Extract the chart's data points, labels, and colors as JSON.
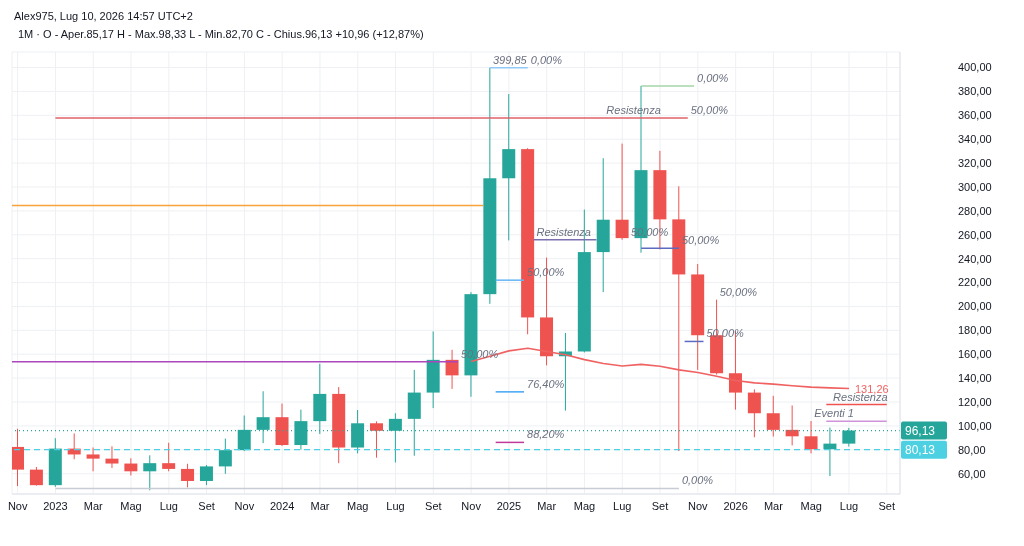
{
  "chart_data": {
    "type": "candlestick",
    "title": "1M · O - Aper.85,17  H - Max.98,33  L - Min.82,70  C - Chius.96,13  +10,96 (+12,87%)",
    "x": [
      "2022-11",
      "2022-12",
      "2023-01",
      "2023-02",
      "2023-03",
      "2023-04",
      "2023-05",
      "2023-06",
      "2023-07",
      "2023-08",
      "2023-09",
      "2023-10",
      "2023-11",
      "2023-12",
      "2024-01",
      "2024-02",
      "2024-03",
      "2024-04",
      "2024-05",
      "2024-06",
      "2024-07",
      "2024-08",
      "2024-09",
      "2024-10",
      "2024-11",
      "2024-12",
      "2025-01",
      "2025-02",
      "2025-03",
      "2025-04",
      "2025-05",
      "2025-06",
      "2025-07",
      "2025-08",
      "2025-09",
      "2025-10",
      "2025-11",
      "2025-12",
      "2026-01",
      "2026-02",
      "2026-03",
      "2026-04",
      "2026-05",
      "2026-06",
      "2026-07"
    ],
    "ohlc": [
      [
        82.4,
        97.6,
        49.6,
        63.4
      ],
      [
        63.4,
        65.6,
        50,
        50.4
      ],
      [
        50.4,
        89.7,
        49,
        81
      ],
      [
        81,
        93.7,
        72.1,
        76.1
      ],
      [
        76.1,
        81.9,
        62,
        72.6
      ],
      [
        72.6,
        82.9,
        64.8,
        68.5
      ],
      [
        68.5,
        72.9,
        58.5,
        62
      ],
      [
        62,
        75.4,
        46.1,
        68.8
      ],
      [
        68.8,
        85.9,
        62,
        64
      ],
      [
        64,
        68.3,
        48.5,
        53.9
      ],
      [
        53.9,
        67.2,
        50.4,
        66.1
      ],
      [
        66.1,
        89.4,
        59.9,
        79.7
      ],
      [
        79.7,
        108.7,
        78.9,
        96.7
      ],
      [
        96.7,
        129,
        85.6,
        107.3
      ],
      [
        107.3,
        118.7,
        83.2,
        84
      ],
      [
        84,
        113.6,
        80.2,
        104
      ],
      [
        104,
        152,
        93.2,
        126.8
      ],
      [
        126.8,
        132.5,
        68.8,
        81.9
      ],
      [
        81.9,
        113.3,
        77,
        102.2
      ],
      [
        102.2,
        103.8,
        73.4,
        95.9
      ],
      [
        95.9,
        110.6,
        69.4,
        105.9
      ],
      [
        105.9,
        146.9,
        75,
        127.9
      ],
      [
        127.9,
        179.1,
        114.9,
        155.3
      ],
      [
        155.3,
        163.7,
        131,
        142.3
      ],
      [
        142.3,
        212,
        124.4,
        210.3
      ],
      [
        210.3,
        399.85,
        202.2,
        307.3
      ],
      [
        307.3,
        377.8,
        255.3,
        331.7
      ],
      [
        331.7,
        332.5,
        176.7,
        190.8
      ],
      [
        190.8,
        240.9,
        150.7,
        158.3
      ],
      [
        158.3,
        177.8,
        112.8,
        162.3
      ],
      [
        162.3,
        281.1,
        161.5,
        245.5
      ],
      [
        245.5,
        324.1,
        212,
        272.6
      ],
      [
        272.6,
        336.3,
        255.8,
        257.2
      ],
      [
        257.2,
        384.6,
        245,
        314.1
      ],
      [
        314.1,
        330.3,
        247.7,
        272.9
      ],
      [
        272.9,
        300.6,
        78.9,
        226.8
      ],
      [
        226.8,
        235.5,
        146.9,
        175.9
      ],
      [
        175.9,
        205.7,
        143,
        144.1
      ],
      [
        144.1,
        179.4,
        113.6,
        127.9
      ],
      [
        127.9,
        130.6,
        90.5,
        110.6
      ],
      [
        110.6,
        125.2,
        91.1,
        96.7
      ],
      [
        96.7,
        117.1,
        83.7,
        91.3
      ],
      [
        91.3,
        104.1,
        77,
        80.5
      ],
      [
        80.5,
        98.6,
        58,
        85.17
      ],
      [
        85.17,
        98.33,
        82.7,
        96.13
      ]
    ],
    "colors": [
      "#ef5350",
      "#ef5350",
      "#26a69a",
      "#ef5350",
      "#ef5350",
      "#ef5350",
      "#ef5350",
      "#26a69a",
      "#ef5350",
      "#ef5350",
      "#26a69a",
      "#26a69a",
      "#26a69a",
      "#26a69a",
      "#ef5350",
      "#26a69a",
      "#26a69a",
      "#ef5350",
      "#26a69a",
      "#ef5350",
      "#26a69a",
      "#26a69a",
      "#26a69a",
      "#ef5350",
      "#26a69a",
      "#26a69a",
      "#26a69a",
      "#ef5350",
      "#ef5350",
      "#26a69a",
      "#26a69a",
      "#26a69a",
      "#ef5350",
      "#26a69a",
      "#ef5350",
      "#ef5350",
      "#ef5350",
      "#ef5350",
      "#ef5350",
      "#ef5350",
      "#ef5350",
      "#ef5350",
      "#ef5350",
      "#26a69a",
      "#26a69a"
    ],
    "series": [
      {
        "type": "line",
        "color": "#f06262",
        "x": [
          "2024-11",
          "2024-12",
          "2025-01",
          "2025-02",
          "2025-03",
          "2025-04",
          "2025-05",
          "2025-06",
          "2025-07",
          "2025-08",
          "2025-09",
          "2025-10",
          "2025-11",
          "2025-12",
          "2026-01",
          "2026-02",
          "2026-03",
          "2026-04",
          "2026-05",
          "2026-06",
          "2026-07"
        ],
        "values": [
          154,
          158.3,
          162.8,
          165,
          162.3,
          159.6,
          155.5,
          152.3,
          150.2,
          151.5,
          150,
          146.9,
          144.7,
          141.5,
          138,
          136,
          135,
          133.6,
          132.5,
          131.8,
          131.26
        ],
        "value_labels": [
          null,
          null,
          null,
          null,
          null,
          null,
          null,
          null,
          null,
          null,
          null,
          null,
          null,
          null,
          null,
          null,
          null,
          null,
          null,
          null,
          "131,26"
        ]
      },
      {
        "type": "line",
        "color": "#e0606a",
        "x": [
          "2023-01",
          "2025-10-15"
        ],
        "values": [
          357.7,
          357.7
        ]
      },
      {
        "type": "line",
        "color": "#f7a23b",
        "x": [
          "2022-10-22",
          "2024-11-20"
        ],
        "values": [
          284.6,
          284.6
        ]
      },
      {
        "type": "line",
        "color": "#ab47bc",
        "x": [
          "2022-10-22",
          "2024-10-10"
        ],
        "values": [
          153.7,
          153.7
        ]
      },
      {
        "type": "line",
        "color": "#7b6fb0",
        "x": [
          "2025-02-10",
          "2025-05-20"
        ],
        "values": [
          255.8,
          255.8
        ]
      },
      {
        "type": "line",
        "color": "#ef5350",
        "x": [
          "2026-05-25",
          "2026-09-01"
        ],
        "values": [
          117.9,
          117.9
        ]
      },
      {
        "type": "line",
        "color": "#ce93d8",
        "x": [
          "2026-05-25",
          "2026-09-01"
        ],
        "values": [
          104,
          104
        ]
      },
      {
        "type": "line",
        "color": "#90caf9",
        "x": [
          "2024-12",
          "2025-02"
        ],
        "values": [
          399.85,
          399.85
        ]
      },
      {
        "type": "line",
        "color": "#a5d6a7",
        "x": [
          "2025-08",
          "2025-10-25"
        ],
        "values": [
          384.6,
          384.6
        ]
      },
      {
        "type": "line",
        "color": "#5c6bc0",
        "x": [
          "2025-08",
          "2025-10"
        ],
        "values": [
          248.8,
          248.8
        ]
      },
      {
        "type": "line",
        "color": "#64b5f6",
        "x": [
          "2024-12-10",
          "2025-01-25"
        ],
        "values": [
          222,
          222
        ]
      },
      {
        "type": "line",
        "color": "#5c6bc0",
        "x": [
          "2025-10-10",
          "2025-11-10"
        ],
        "values": [
          170.7,
          170.7
        ]
      },
      {
        "type": "line",
        "color": "#42a5f5",
        "x": [
          "2024-12-10",
          "2025-01-25"
        ],
        "values": [
          128.5,
          128.5
        ]
      },
      {
        "type": "line",
        "color": "#c2399a",
        "x": [
          "2024-12-10",
          "2025-01-25"
        ],
        "values": [
          86.2,
          86.2
        ]
      },
      {
        "type": "line",
        "color": "#c8ccd4",
        "x": [
          "2023-01",
          "2025-10"
        ],
        "values": [
          47.7,
          47.7
        ]
      }
    ],
    "ref_lines": [
      {
        "axis": "y",
        "value": 96.13,
        "label": "96,13",
        "color": "#26a69a",
        "line_style": "dotted"
      },
      {
        "axis": "y",
        "value": 80.13,
        "label": "80,13",
        "color": "#4dd0e1",
        "line_style": "dashed"
      }
    ],
    "annotations": [
      "Alex975, Lug 10, 2026 14:57 UTC+2",
      {
        "text": "399,85",
        "x": "2024-12",
        "y": 399.85
      },
      {
        "text": "0,00%",
        "x": "2025-02",
        "y": 399.85
      },
      {
        "text": "0,00%",
        "x": "2025-10-25",
        "y": 384.6
      },
      {
        "text": "Resistenza",
        "x": "2025-06",
        "y": 357.7
      },
      {
        "text": "50,00%",
        "x": "2025-10-15",
        "y": 357.7
      },
      {
        "text": "Resistenza",
        "x": "2025-02-10",
        "y": 255.8
      },
      {
        "text": "50,00%",
        "x": "2025-07-10",
        "y": 255.8
      },
      {
        "text": "50,00%",
        "x": "2025-10",
        "y": 248.8
      },
      {
        "text": "50,00%",
        "x": "2025-01-25",
        "y": 222
      },
      {
        "text": "50,00%",
        "x": "2025-12",
        "y": 205
      },
      {
        "text": "50,00%",
        "x": "2025-11-10",
        "y": 170.7
      },
      {
        "text": "50,00%",
        "x": "2024-10-10",
        "y": 153.7
      },
      {
        "text": "76,40%",
        "x": "2025-01-25",
        "y": 128.5
      },
      {
        "text": "88,20%",
        "x": "2025-01-25",
        "y": 86.2
      },
      {
        "text": "0,00%",
        "x": "2025-10",
        "y": 47.7
      },
      {
        "text": "Resistenza",
        "x": "2026-06",
        "y": 117.9
      },
      {
        "text": "Eventi 1",
        "x": "2026-05",
        "y": 104.1
      }
    ],
    "xlim": [
      "2022-10-22",
      "2026-09-22"
    ],
    "xticks": [
      {
        "value": "2022-11",
        "label": "Nov"
      },
      {
        "value": "2023-01",
        "label": "2023"
      },
      {
        "value": "2023-03",
        "label": "Mar"
      },
      {
        "value": "2023-05",
        "label": "Mag"
      },
      {
        "value": "2023-07",
        "label": "Lug"
      },
      {
        "value": "2023-09",
        "label": "Set"
      },
      {
        "value": "2023-11",
        "label": "Nov"
      },
      {
        "value": "2024-01",
        "label": "2024"
      },
      {
        "value": "2024-03",
        "label": "Mar"
      },
      {
        "value": "2024-05",
        "label": "Mag"
      },
      {
        "value": "2024-07",
        "label": "Lug"
      },
      {
        "value": "2024-09",
        "label": "Set"
      },
      {
        "value": "2024-11",
        "label": "Nov"
      },
      {
        "value": "2025-01",
        "label": "2025"
      },
      {
        "value": "2025-03",
        "label": "Mar"
      },
      {
        "value": "2025-05",
        "label": "Mag"
      },
      {
        "value": "2025-07",
        "label": "Lug"
      },
      {
        "value": "2025-09",
        "label": "Set"
      },
      {
        "value": "2025-11",
        "label": "Nov"
      },
      {
        "value": "2026-01",
        "label": "2026"
      },
      {
        "value": "2026-03",
        "label": "Mar"
      },
      {
        "value": "2026-05",
        "label": "Mag"
      },
      {
        "value": "2026-07",
        "label": "Lug"
      },
      {
        "value": "2026-09",
        "label": "Set"
      }
    ],
    "ylim": [
      43,
      413
    ],
    "yticks": [
      {
        "value": 60,
        "label": "60,00"
      },
      {
        "value": 80,
        "label": "80,00"
      },
      {
        "value": 100,
        "label": "100,00"
      },
      {
        "value": 120,
        "label": "120,00"
      },
      {
        "value": 140,
        "label": "140,00"
      },
      {
        "value": 160,
        "label": "160,00"
      },
      {
        "value": 180,
        "label": "180,00"
      },
      {
        "value": 200,
        "label": "200,00"
      },
      {
        "value": 220,
        "label": "220,00"
      },
      {
        "value": 240,
        "label": "240,00"
      },
      {
        "value": 260,
        "label": "260,00"
      },
      {
        "value": 280,
        "label": "280,00"
      },
      {
        "value": 300,
        "label": "300,00"
      },
      {
        "value": 320,
        "label": "320,00"
      },
      {
        "value": 340,
        "label": "340,00"
      },
      {
        "value": 360,
        "label": "360,00"
      },
      {
        "value": 380,
        "label": "380,00"
      },
      {
        "value": 400,
        "label": "400,00"
      }
    ],
    "grid": true
  }
}
